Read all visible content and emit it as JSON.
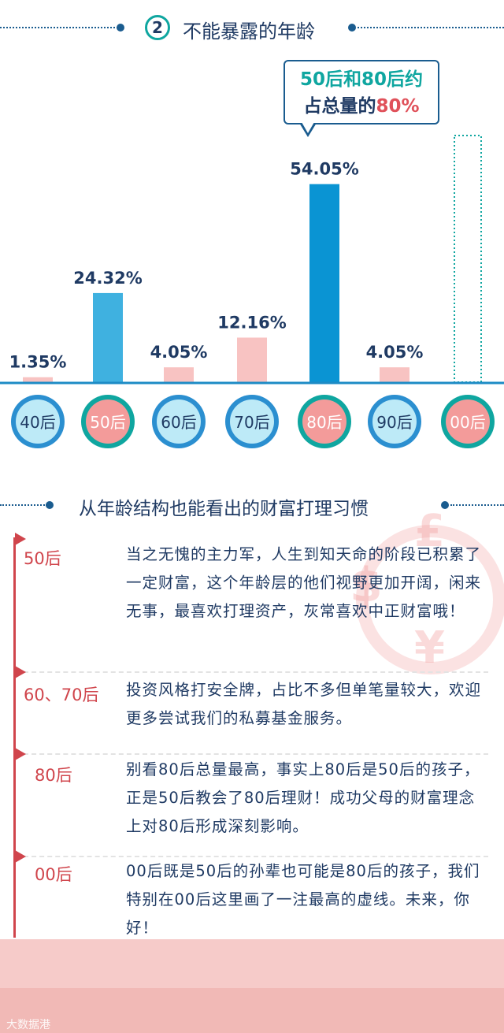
{
  "section1": {
    "number": "2",
    "title": "不能暴露的年龄"
  },
  "callout": {
    "line1": "50后和80后约",
    "line2_prefix": "占总量的",
    "line2_highlight": "80%"
  },
  "chart_data": {
    "type": "bar",
    "categories": [
      "40后",
      "50后",
      "60后",
      "70后",
      "80后",
      "90后",
      "00后"
    ],
    "values": [
      1.35,
      24.32,
      4.05,
      12.16,
      54.05,
      4.05,
      null
    ],
    "value_labels": [
      "1.35%",
      "24.32%",
      "4.05%",
      "12.16%",
      "54.05%",
      "4.05%",
      ""
    ],
    "ylim": [
      0,
      60
    ],
    "grid": false,
    "annotation": "00后 shown as a dotted outline bar reaching the top of the chart",
    "colors": {
      "highlight_bar": "#0a94d3",
      "secondary_bar": "#3fb1e0",
      "base_bar": "#f8c3c2",
      "axis": "#1d8bc5",
      "teal": "#0fa6a0",
      "red": "#e0515a"
    }
  },
  "section2": {
    "title": "从年龄结构也能看出的财富打理习惯"
  },
  "timeline": [
    {
      "era": "50后",
      "text": "当之无愧的主力军，人生到知天命的阶段已积累了一定财富，这个年龄层的他们视野更加开阔，闲来无事，最喜欢打理资产，灰常喜欢中正财富哦！"
    },
    {
      "era": "60、70后",
      "text": "投资风格打安全牌，占比不多但单笔量较大，欢迎更多尝试我们的私募基金服务。"
    },
    {
      "era": "80后",
      "text": "别看80后总量最高，事实上80后是50后的孩子，正是50后教会了80后理财！成功父母的财富理念上对80后形成深刻影响。"
    },
    {
      "era": "00后",
      "text": "00后既是50后的孙辈也可能是80后的孩子，我们特别在00后这里画了一注最高的虚线。未来，你好！"
    }
  ],
  "decor": {
    "symbols": [
      "£",
      "$",
      "¥"
    ]
  },
  "watermark": "大数据港"
}
